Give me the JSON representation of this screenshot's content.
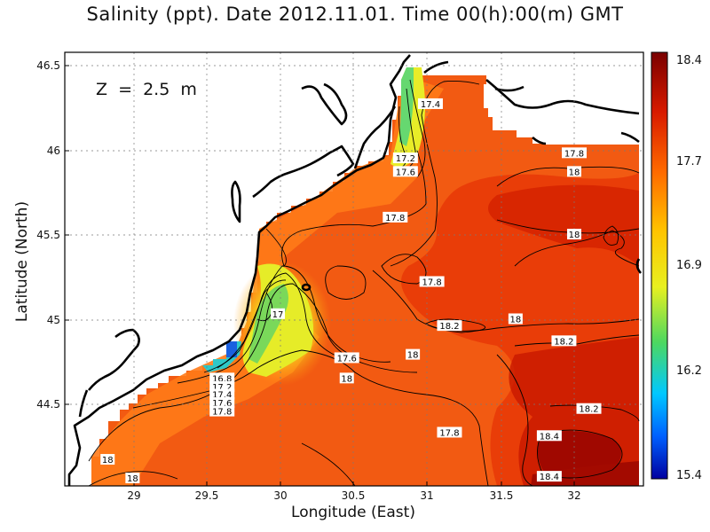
{
  "title": "Salinity (ppt). Date 2012.11.01. Time 00(h):00(m) GMT",
  "depth_label": "Z  =  2.5  m",
  "axes": {
    "xlabel": "Longitude (East)",
    "ylabel": "Latitude (North)",
    "xticks": [
      "29",
      "29.5",
      "30",
      "30.5",
      "31",
      "31.5",
      "32"
    ],
    "yticks": [
      "46.5",
      "46",
      "45.5",
      "45",
      "44.5"
    ],
    "xlim": [
      28.6,
      32.45
    ],
    "ylim": [
      44.05,
      46.6
    ]
  },
  "colorbar": {
    "ticks": [
      "18.4",
      "17.7",
      "16.9",
      "16.2",
      "15.4"
    ],
    "range": [
      15.4,
      18.4
    ],
    "colors": [
      "#7a0000",
      "#d81a00",
      "#ff6a00",
      "#ffc400",
      "#e8f020",
      "#4cd860",
      "#00c8ff",
      "#0060ff",
      "#0000a0"
    ]
  },
  "contour_labels": [
    {
      "text": "17.4",
      "lon": 31.02,
      "lat": 46.27
    },
    {
      "text": "17.2",
      "lon": 30.85,
      "lat": 45.95
    },
    {
      "text": "17.6",
      "lon": 30.85,
      "lat": 45.87
    },
    {
      "text": "17.8",
      "lon": 32.0,
      "lat": 45.98
    },
    {
      "text": "18",
      "lon": 32.0,
      "lat": 45.87
    },
    {
      "text": "17.8",
      "lon": 30.78,
      "lat": 45.6
    },
    {
      "text": "18",
      "lon": 32.0,
      "lat": 45.5
    },
    {
      "text": "17.8",
      "lon": 31.03,
      "lat": 45.22
    },
    {
      "text": "17",
      "lon": 29.98,
      "lat": 45.03
    },
    {
      "text": "18.2",
      "lon": 31.15,
      "lat": 44.96
    },
    {
      "text": "18",
      "lon": 31.6,
      "lat": 45.0
    },
    {
      "text": "18.2",
      "lon": 31.93,
      "lat": 44.87
    },
    {
      "text": "17.6",
      "lon": 30.45,
      "lat": 44.77
    },
    {
      "text": "18",
      "lon": 30.9,
      "lat": 44.79
    },
    {
      "text": "18",
      "lon": 30.45,
      "lat": 44.65
    },
    {
      "text": "16.8",
      "lon": 29.6,
      "lat": 44.65
    },
    {
      "text": "17.2",
      "lon": 29.6,
      "lat": 44.6
    },
    {
      "text": "17.4",
      "lon": 29.6,
      "lat": 44.555
    },
    {
      "text": "17.6",
      "lon": 29.6,
      "lat": 44.505
    },
    {
      "text": "17.8",
      "lon": 29.6,
      "lat": 44.455
    },
    {
      "text": "18.2",
      "lon": 32.1,
      "lat": 44.47
    },
    {
      "text": "17.8",
      "lon": 31.15,
      "lat": 44.33
    },
    {
      "text": "18.4",
      "lon": 31.83,
      "lat": 44.31
    },
    {
      "text": "18",
      "lon": 28.82,
      "lat": 44.17
    },
    {
      "text": "18",
      "lon": 28.99,
      "lat": 44.06
    },
    {
      "text": "18.4",
      "lon": 31.83,
      "lat": 44.07
    }
  ]
}
